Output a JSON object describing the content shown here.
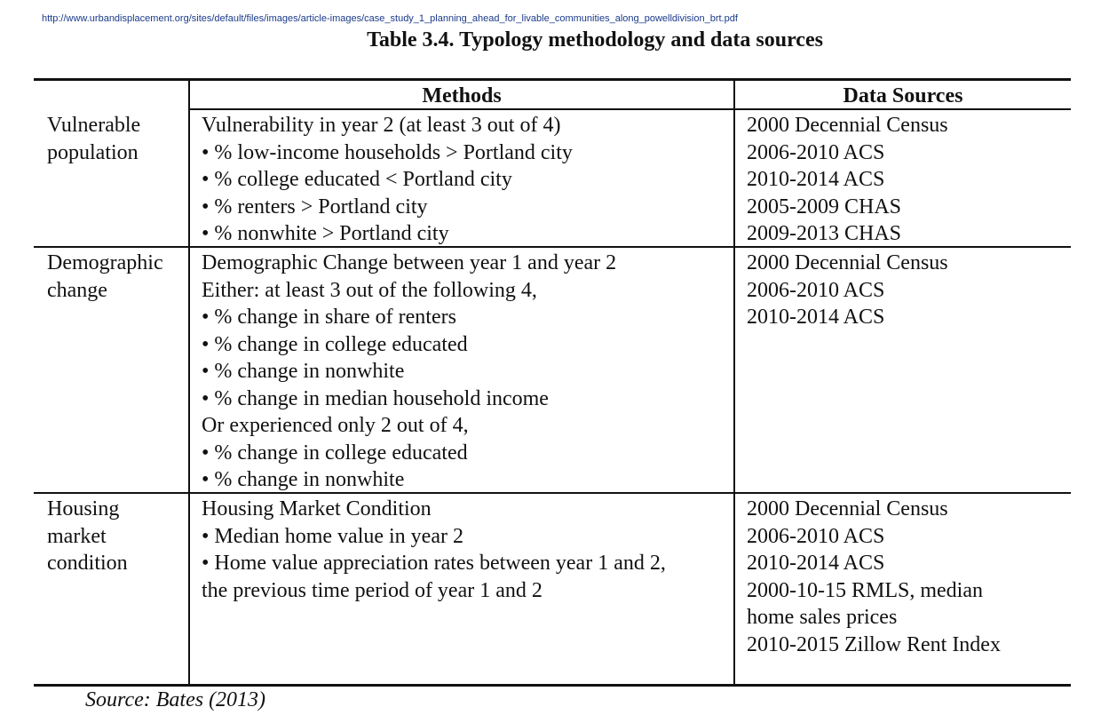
{
  "url": "http://www.urbandisplacement.org/sites/default/files/images/article-images/case_study_1_planning_ahead_for_livable_communities_along_powelldivision_brt.pdf",
  "title": "Table 3.4. Typology methodology and data sources",
  "headers": {
    "methods": "Methods",
    "sources": "Data Sources"
  },
  "rows": [
    {
      "category": [
        "Vulnerable",
        "population"
      ],
      "methods": [
        "Vulnerability in year 2 (at least 3 out of 4)",
        "• % low-income households > Portland city",
        "• % college educated < Portland city",
        "• % renters > Portland city",
        "• % nonwhite > Portland city"
      ],
      "sources": [
        "2000 Decennial Census",
        "2006-2010 ACS",
        "2010-2014 ACS",
        "2005-2009 CHAS",
        "2009-2013 CHAS"
      ]
    },
    {
      "category": [
        "Demographic",
        "change"
      ],
      "methods": [
        "Demographic Change between year 1 and year 2",
        "Either: at least 3 out of the following 4,",
        "• % change in share of renters",
        "• % change in college educated",
        "• % change in nonwhite",
        "• % change in median household income",
        "Or experienced only 2 out of 4,",
        "• % change in college educated",
        "• % change in nonwhite"
      ],
      "sources": [
        "2000 Decennial Census",
        "2006-2010 ACS",
        "2010-2014 ACS"
      ]
    },
    {
      "category": [
        "Housing",
        "market",
        "condition"
      ],
      "methods": [
        "Housing Market Condition",
        "• Median home value in year 2",
        "• Home value appreciation rates between year 1 and 2,",
        "the previous time period of year 1 and 2"
      ],
      "sources": [
        "2000 Decennial Census",
        "2006-2010 ACS",
        "2010-2014 ACS",
        "2000-10-15 RMLS, median",
        "home sales prices",
        "2010-2015 Zillow Rent Index"
      ]
    }
  ],
  "source_note": "Source: Bates (2013)"
}
